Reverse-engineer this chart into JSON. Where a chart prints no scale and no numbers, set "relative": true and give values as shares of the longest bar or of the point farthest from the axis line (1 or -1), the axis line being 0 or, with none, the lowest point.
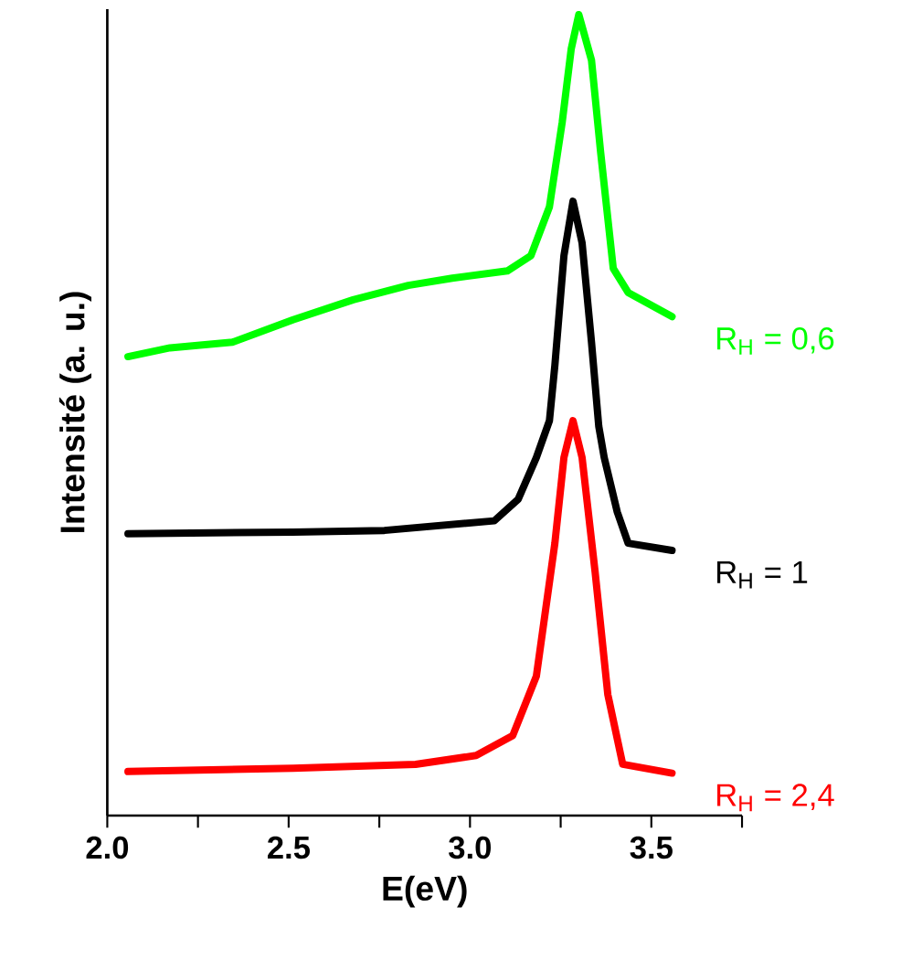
{
  "chart_data": {
    "type": "line",
    "relative": true,
    "xlabel": "E(eV)",
    "ylabel": "Intensité (a. u.)",
    "xlim": [
      2.0,
      3.75
    ],
    "xticks": [
      {
        "value": 2.0,
        "label": "2.0"
      },
      {
        "value": 2.25,
        "label": null
      },
      {
        "value": 2.5,
        "label": "2.5"
      },
      {
        "value": 2.75,
        "label": null
      },
      {
        "value": 3.0,
        "label": "3.0"
      },
      {
        "value": 3.25,
        "label": null
      },
      {
        "value": 3.5,
        "label": "3.5"
      },
      {
        "value": 3.75,
        "label": null
      }
    ],
    "tick_labels": "x",
    "grid": false,
    "marker": "none",
    "line_style": "solid",
    "series": [
      {
        "name": "R$_{H}$ = 0,6",
        "color": "#00ff00",
        "x": [
          2.057,
          2.173,
          2.345,
          2.512,
          2.678,
          2.83,
          2.951,
          3.103,
          3.168,
          3.219,
          3.254,
          3.279,
          3.3,
          3.335,
          3.36,
          3.395,
          3.436,
          3.557
        ],
        "values": [
          0.573,
          0.584,
          0.591,
          0.619,
          0.644,
          0.662,
          0.671,
          0.68,
          0.699,
          0.76,
          0.865,
          0.957,
          1.0,
          0.943,
          0.829,
          0.683,
          0.653,
          0.623
        ]
      },
      {
        "name": "R$_{H}$ = 1",
        "color": "#000000",
        "x": [
          2.057,
          2.512,
          2.764,
          3.067,
          3.133,
          3.183,
          3.219,
          3.234,
          3.259,
          3.284,
          3.309,
          3.335,
          3.355,
          3.37,
          3.406,
          3.436,
          3.557
        ],
        "values": [
          0.352,
          0.354,
          0.356,
          0.368,
          0.395,
          0.447,
          0.493,
          0.562,
          0.699,
          0.767,
          0.715,
          0.591,
          0.486,
          0.447,
          0.379,
          0.34,
          0.331
        ]
      },
      {
        "name": "R$_{H}$ = 2,4",
        "color": "#ff0000",
        "x": [
          2.057,
          2.512,
          2.85,
          3.017,
          3.118,
          3.183,
          3.234,
          3.259,
          3.284,
          3.309,
          3.345,
          3.38,
          3.421,
          3.557
        ],
        "values": [
          0.055,
          0.059,
          0.064,
          0.075,
          0.1,
          0.174,
          0.34,
          0.447,
          0.493,
          0.447,
          0.304,
          0.151,
          0.064,
          0.053
        ]
      }
    ]
  }
}
